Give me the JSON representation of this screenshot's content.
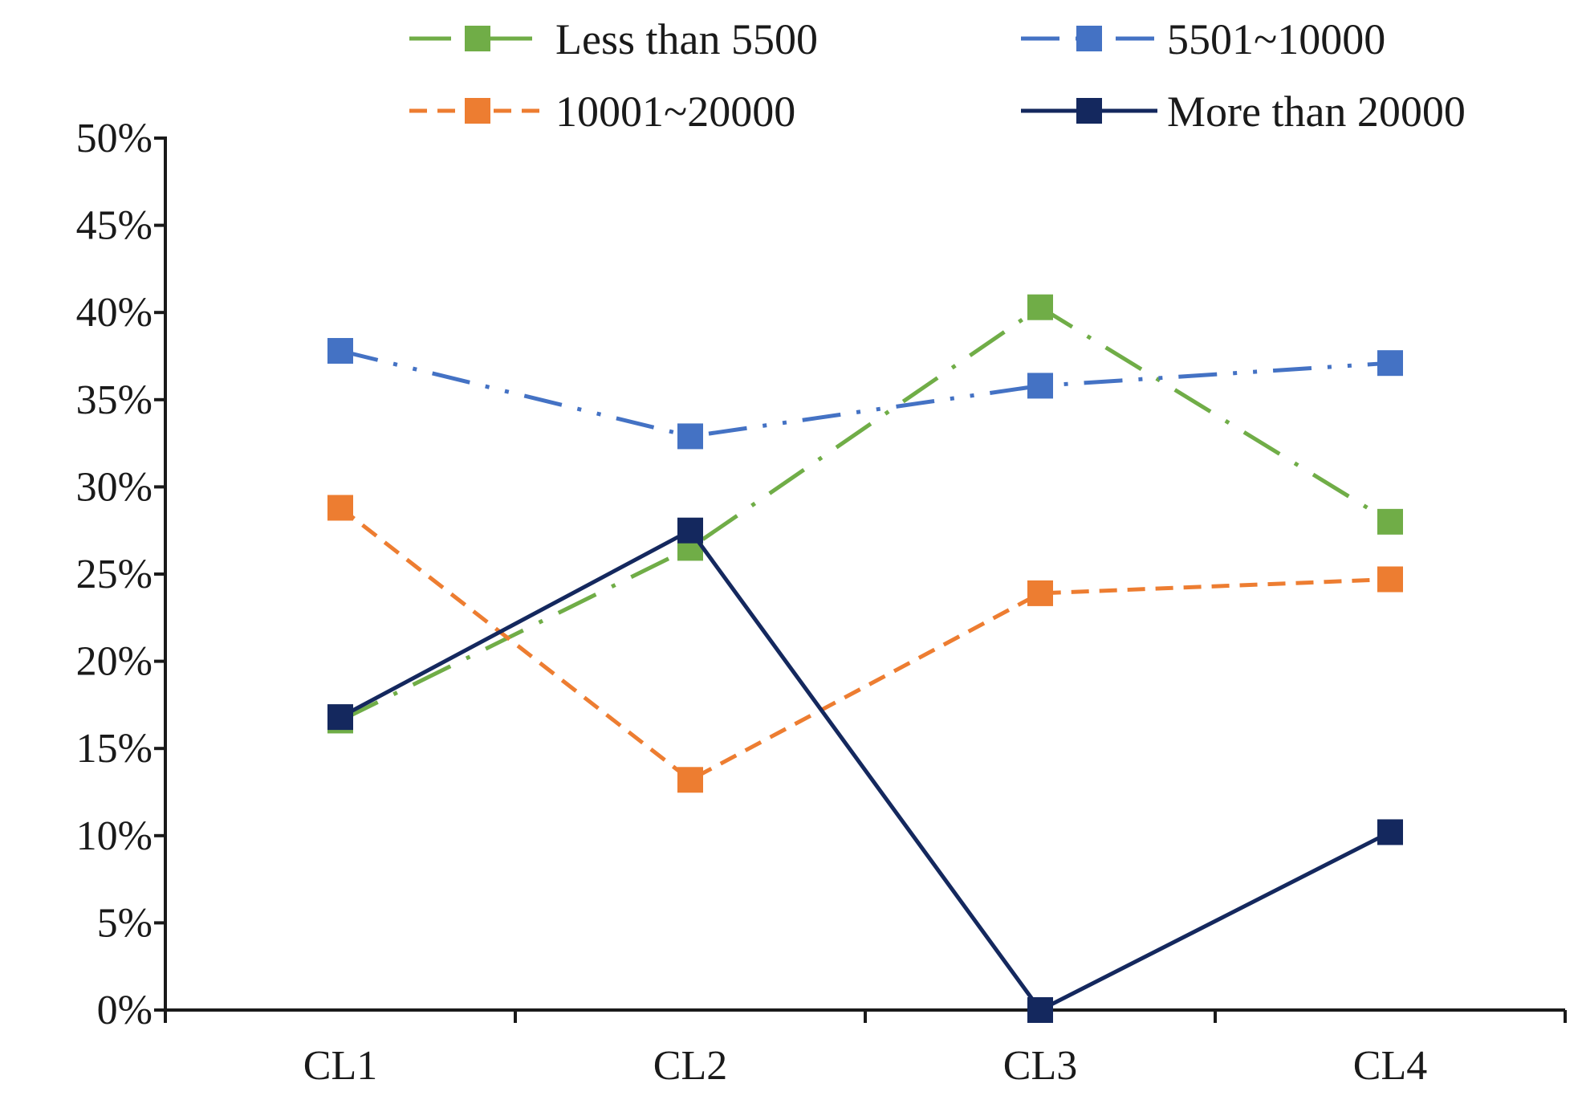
{
  "chart_data": {
    "type": "line",
    "title": "",
    "xlabel": "",
    "ylabel": "",
    "categories": [
      "CL1",
      "CL2",
      "CL3",
      "CL4"
    ],
    "ylim": [
      0,
      0.5
    ],
    "yticks": [
      0,
      0.05,
      0.1,
      0.15,
      0.2,
      0.25,
      0.3,
      0.35,
      0.4,
      0.45,
      0.5
    ],
    "ytick_labels": [
      "0%",
      "5%",
      "10%",
      "15%",
      "20%",
      "25%",
      "30%",
      "35%",
      "40%",
      "45%",
      "50%"
    ],
    "grid": false,
    "legend_position": "top",
    "series": [
      {
        "name": "Less than 5500",
        "color": "#70ad47",
        "dash": "long-dash-dot",
        "values": [
          0.166,
          0.265,
          0.403,
          0.28
        ]
      },
      {
        "name": "5501~10000",
        "color": "#4472c4",
        "dash": "dash-dot-dot",
        "values": [
          0.378,
          0.329,
          0.358,
          0.371
        ]
      },
      {
        "name": "10001~20000",
        "color": "#ed7d31",
        "dash": "dash",
        "values": [
          0.288,
          0.132,
          0.239,
          0.247
        ]
      },
      {
        "name": "More than 20000",
        "color": "#14285e",
        "dash": "solid",
        "values": [
          0.168,
          0.275,
          0.0,
          0.102
        ]
      }
    ]
  }
}
